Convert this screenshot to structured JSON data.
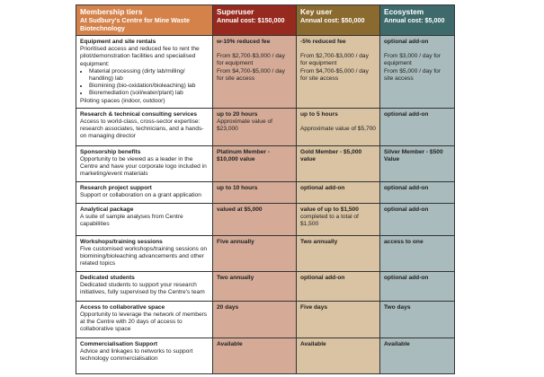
{
  "header": {
    "title": "Membership tiers",
    "subtitle": "At Sudbury's Centre for Mine Waste Biotechnology",
    "tiers": [
      {
        "name": "Superuser",
        "cost": "Annual cost: $150,000",
        "color": "#962a1f"
      },
      {
        "name": "Key user",
        "cost": "Annual cost: $50,000",
        "color": "#8b6a2f"
      },
      {
        "name": "Ecosystem",
        "cost": "Annual cost: $5,000",
        "color": "#3e6a6b"
      }
    ]
  },
  "rows": [
    {
      "title": "Equipment and site rentals",
      "desc": "Prioritised access and reduced fee to rent the pilot/demonstration facilities and specialised equipment:",
      "bullets": [
        "Material processing (dirty lab/milling/ handling) lab",
        "Biomining (bio-oxidation/bioleaching) lab",
        "Bioremediation (soil/water/plant) lab"
      ],
      "after": "Piloting spaces (indoor, outdoor)",
      "cells": [
        {
          "head": "w-10% reduced fee",
          "body": "From $2,700-$3,000 / day for equipment",
          "body2": "From $4,700-$5,000 / day for site access"
        },
        {
          "head": "-5% reduced fee",
          "body": "From $2,700-$3,000 / day for equipment",
          "body2": "From $4,700-$5,000 / day for site access"
        },
        {
          "head": "optional add-on",
          "body": "From $3,000 / day for equipment",
          "body2": "From $5,000 / day for site access"
        }
      ]
    },
    {
      "title": "Research & technical consulting services",
      "desc": "Access to world-class, cross-sector expertise: research associates, technicians, and a hands-on managing director",
      "cells": [
        {
          "head": "up to 20 hours",
          "body": "Approximate value of $23,000"
        },
        {
          "head": "up to 5 hours",
          "body2": "Approximate value of $5,700"
        },
        {
          "head": "optional add-on"
        }
      ]
    },
    {
      "title": "Sponsorship benefits",
      "desc": "Opportunity to be viewed as a leader in the Centre and have your corporate logo included in marketing/event materials",
      "cells": [
        {
          "head": "Platinum Member - $10,000 value"
        },
        {
          "head": "Gold Member - $5,000 value"
        },
        {
          "head": "Silver Member - $500 Value"
        }
      ]
    },
    {
      "title": "Research project support",
      "desc": "Support or collaboration on a grant application",
      "cells": [
        {
          "head": "up to 10 hours"
        },
        {
          "head": "optional add-on"
        },
        {
          "head": "optional add-on"
        }
      ]
    },
    {
      "title": "Analytical package",
      "desc": "A suite of sample analyses from Centre capabilities",
      "cells": [
        {
          "head": "valued at $5,000"
        },
        {
          "head": "value of up to $1,500",
          "body": "completed to a total of $1,500"
        },
        {
          "head": "optional add-on"
        }
      ]
    },
    {
      "title": "Workshops/training sessions",
      "desc": "Five customised workshops/training sessions on biomining/bioleaching advancements and other related topics",
      "cells": [
        {
          "head": "Five annually"
        },
        {
          "head": "Two annually"
        },
        {
          "head": "access to one"
        }
      ]
    },
    {
      "title": "Dedicated students",
      "desc": "Dedicated students to support your research initiatives, fully supervised by the Centre's team",
      "cells": [
        {
          "head": "Two annually"
        },
        {
          "head": "optional add-on"
        },
        {
          "head": "optional add-on"
        }
      ]
    },
    {
      "title": "Access to collaborative space",
      "desc": "Opportunity to leverage the network of members at the Centre with 20 days of access to collaborative space",
      "cells": [
        {
          "head": "20 days"
        },
        {
          "head": "Five days"
        },
        {
          "head": "Two days"
        }
      ]
    },
    {
      "title": "Commercialisation Support",
      "desc": "Advice and linkages to networks to support technology commercialisation",
      "cells": [
        {
          "head": "Available"
        },
        {
          "head": "Available"
        },
        {
          "head": "Available"
        }
      ]
    }
  ]
}
